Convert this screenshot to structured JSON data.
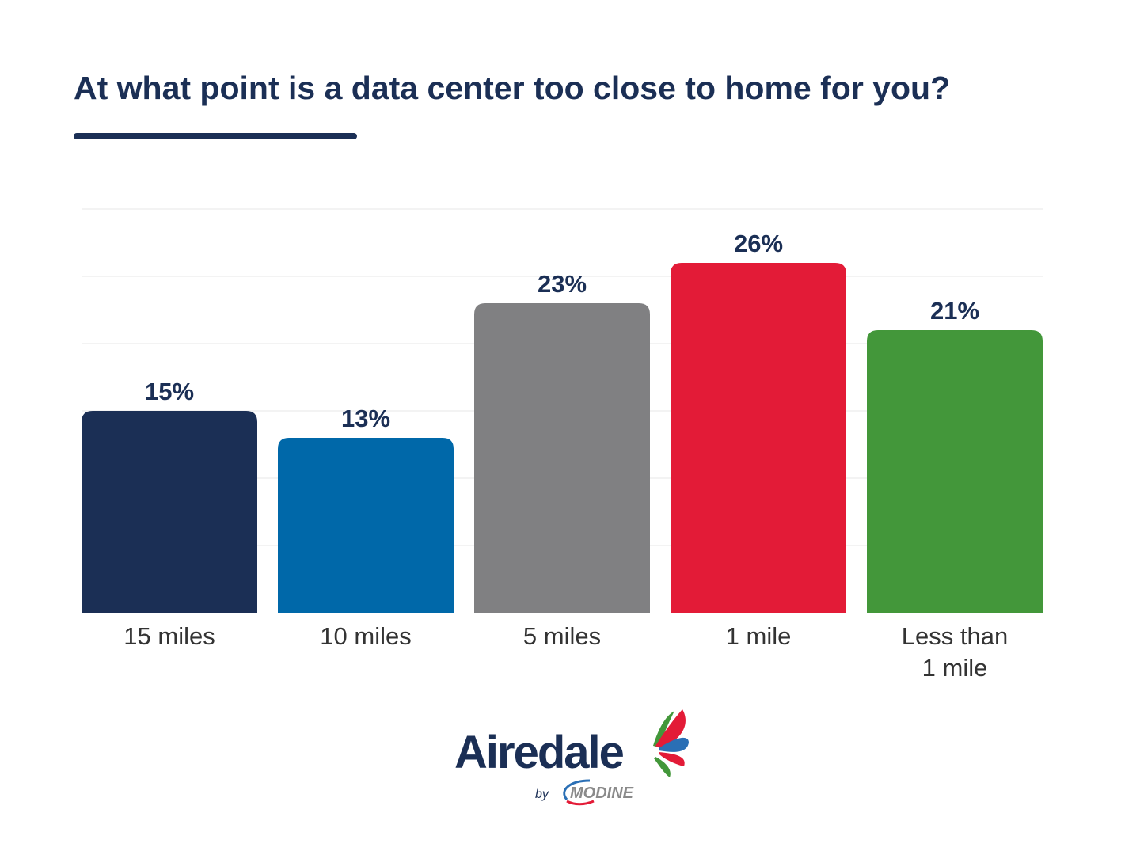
{
  "chart_data": {
    "type": "bar",
    "title": "At what point is a data center too close to home for you?",
    "categories": [
      "15 miles",
      "10 miles",
      "5 miles",
      "1 mile",
      "Less than 1 mile"
    ],
    "category_lines": [
      [
        "15 miles"
      ],
      [
        "10 miles"
      ],
      [
        "5 miles"
      ],
      [
        "1 mile"
      ],
      [
        "Less than",
        "1 mile"
      ]
    ],
    "values": [
      15,
      13,
      23,
      26,
      21
    ],
    "data_labels": [
      "15%",
      "13%",
      "23%",
      "26%",
      "21%"
    ],
    "colors": [
      "#1b2f55",
      "#0068a9",
      "#808082",
      "#e31b37",
      "#43973a"
    ],
    "xlabel": "",
    "ylabel": "",
    "ylim": [
      0,
      30
    ],
    "grid_step": 5,
    "grid": true,
    "legend": "none"
  },
  "branding": {
    "logo_text": "Airedale",
    "by_text": "by",
    "sub_logo_text": "MODINE"
  }
}
